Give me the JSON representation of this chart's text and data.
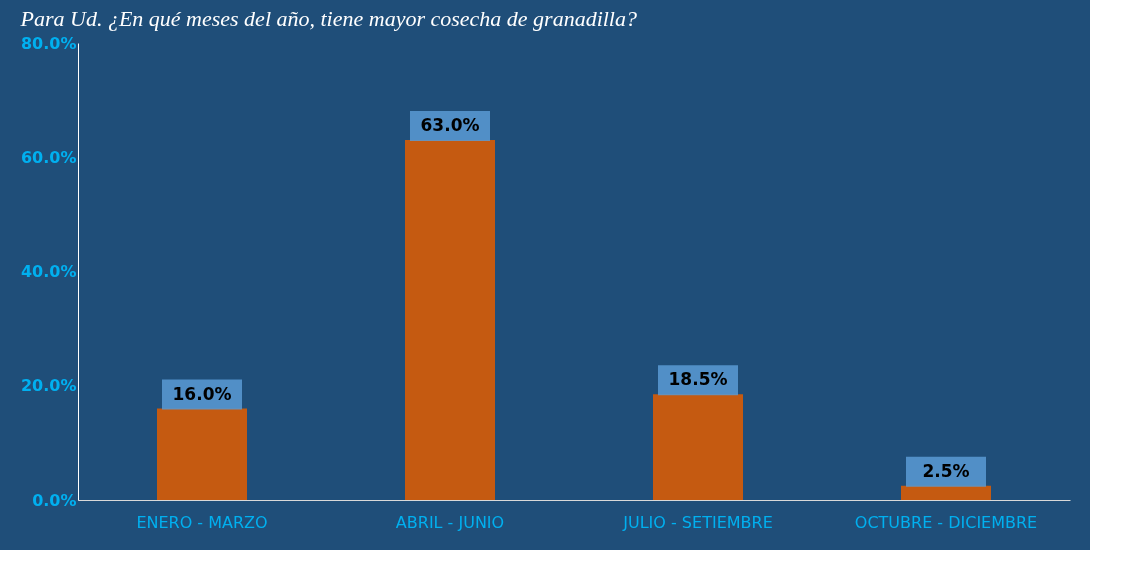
{
  "chart_data": {
    "type": "bar",
    "title": "Para Ud. ¿En qué meses del año, tiene mayor cosecha de granadilla?",
    "categories": [
      "ENERO - MARZO",
      "ABRIL - JUNIO",
      "JULIO - SETIEMBRE",
      "OCTUBRE - DICIEMBRE"
    ],
    "values": [
      16.0,
      63.0,
      18.5,
      2.5
    ],
    "value_labels": [
      "16.0%",
      "63.0%",
      "18.5%",
      "2.5%"
    ],
    "color": "#c55a11",
    "ylim": [
      0,
      80
    ],
    "yticks": [
      {
        "value": 0,
        "label": "0.0%"
      },
      {
        "value": 20,
        "label": "20.0%"
      },
      {
        "value": 40,
        "label": "40.0%"
      },
      {
        "value": 60,
        "label": "60.0%"
      },
      {
        "value": 80,
        "label": "80.0%"
      }
    ],
    "grid": false
  }
}
